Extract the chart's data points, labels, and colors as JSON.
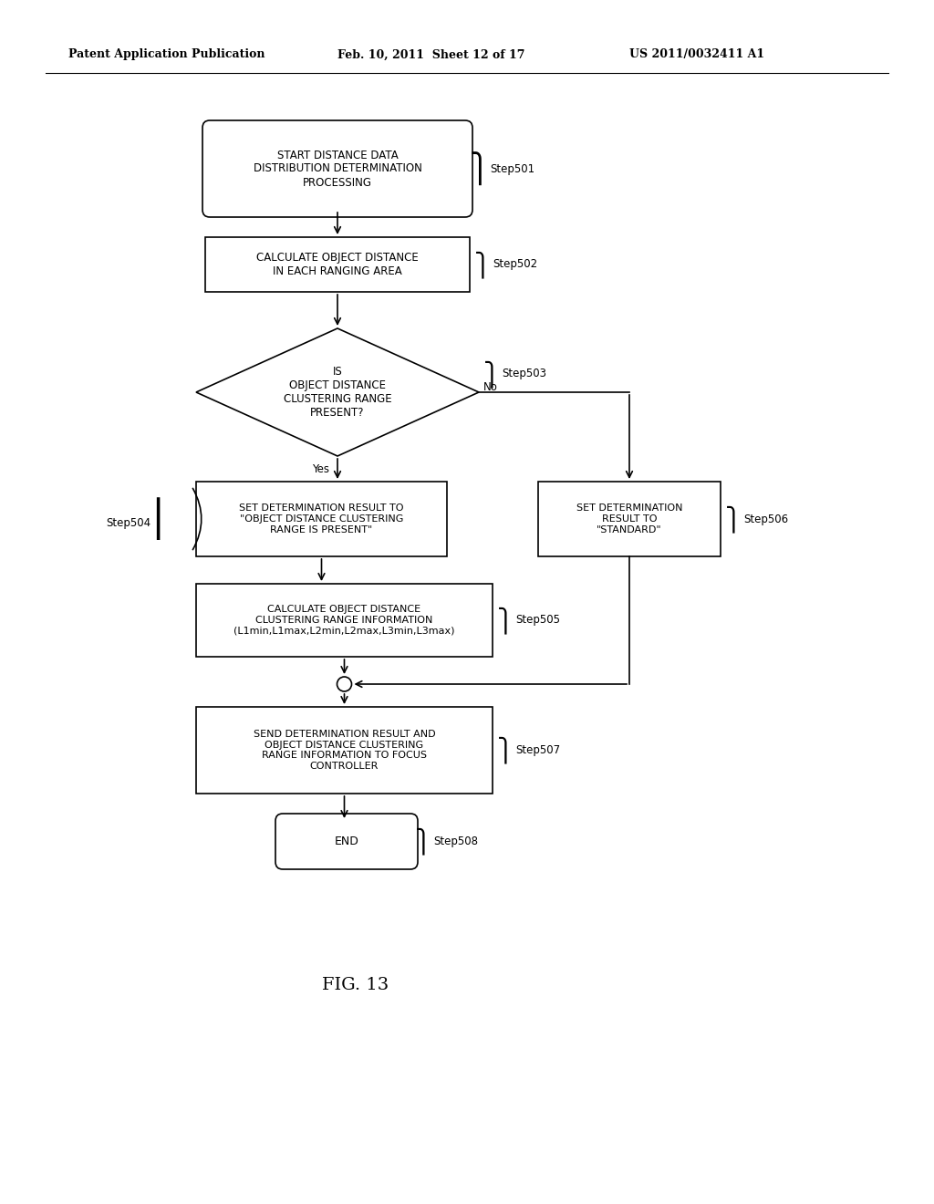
{
  "header_left": "Patent Application Publication",
  "header_mid": "Feb. 10, 2011  Sheet 12 of 17",
  "header_right": "US 2011/0032411 A1",
  "figure_label": "FIG. 13",
  "background_color": "#ffffff",
  "font_size_body": 8.5,
  "font_size_small": 8,
  "font_size_step": 8,
  "font_size_fig": 14
}
